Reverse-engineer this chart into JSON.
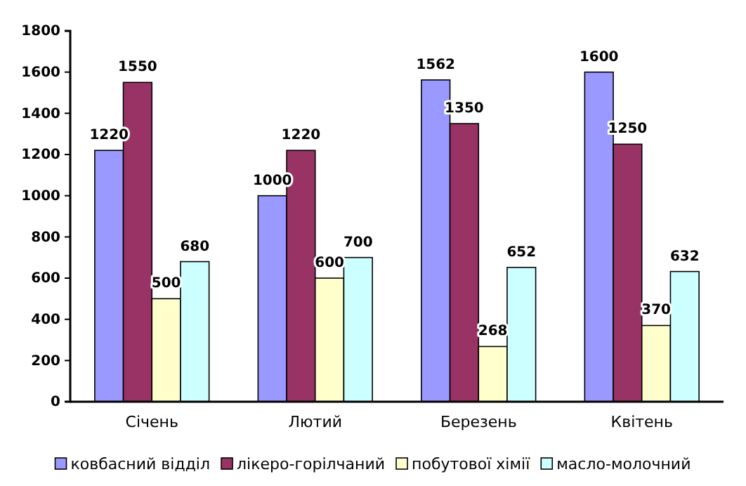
{
  "chart_data": {
    "type": "bar",
    "categories": [
      "Січень",
      "Лютий",
      "Березень",
      "Квітень"
    ],
    "series": [
      {
        "name": "ковбасний відділ",
        "color": "#9999ff",
        "values": [
          1220,
          1000,
          1562,
          1600
        ]
      },
      {
        "name": "лікеро-горілчаний",
        "color": "#993366",
        "values": [
          1550,
          1220,
          1350,
          1250
        ]
      },
      {
        "name": "побутової хімії",
        "color": "#ffffcc",
        "values": [
          500,
          600,
          268,
          370
        ]
      },
      {
        "name": "масло-молочний",
        "color": "#ccffff",
        "values": [
          680,
          700,
          652,
          632
        ]
      }
    ],
    "ylim": [
      0,
      1800
    ],
    "yticks": [
      0,
      200,
      400,
      600,
      800,
      1000,
      1200,
      1400,
      1600,
      1800
    ],
    "grid": false,
    "legend": "bottom",
    "data_labels": true
  }
}
